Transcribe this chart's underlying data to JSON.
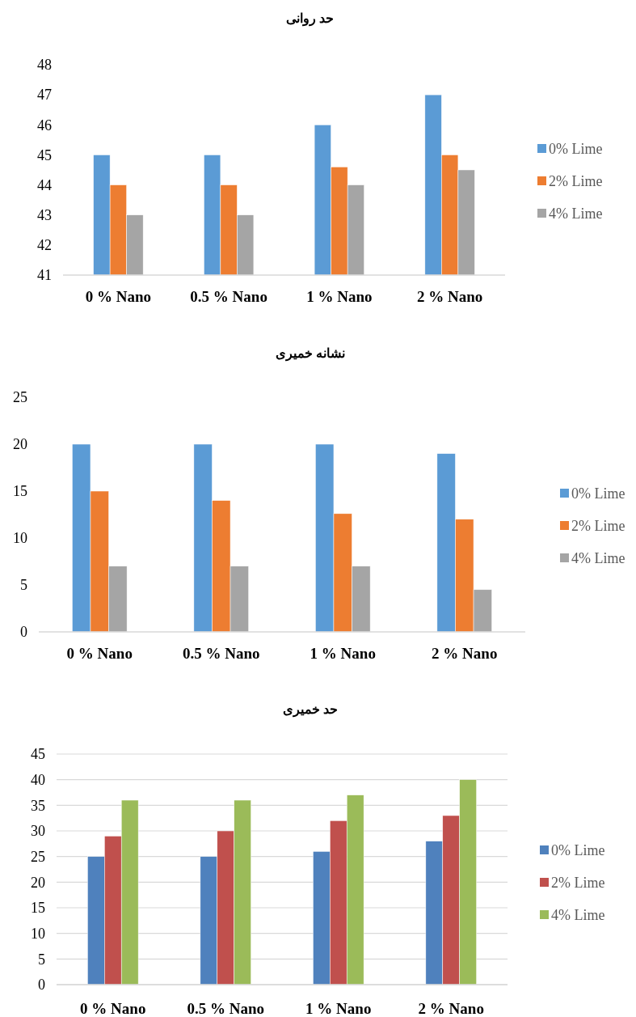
{
  "chart_data": [
    {
      "type": "bar",
      "title": "حد روانی",
      "categories": [
        "0 % Nano",
        "0.5 % Nano",
        "1 % Nano",
        "2 % Nano"
      ],
      "series": [
        {
          "name": "0% Lime",
          "color": "#5b9bd5",
          "values": [
            45,
            45,
            46,
            47
          ]
        },
        {
          "name": "2% Lime",
          "color": "#ed7d31",
          "values": [
            44,
            44,
            44.6,
            45
          ]
        },
        {
          "name": "4% Lime",
          "color": "#a5a5a5",
          "values": [
            43,
            43,
            44,
            44.5
          ]
        }
      ],
      "ylim": [
        41,
        48
      ],
      "yticks": [
        41,
        42,
        43,
        44,
        45,
        46,
        47,
        48
      ],
      "grid": false,
      "legend": "right"
    },
    {
      "type": "bar",
      "title": "نشانه خمیری",
      "categories": [
        "0 % Nano",
        "0.5 % Nano",
        "1 % Nano",
        "2 % Nano"
      ],
      "series": [
        {
          "name": "0% Lime",
          "color": "#5b9bd5",
          "values": [
            20,
            20,
            20,
            19
          ]
        },
        {
          "name": "2% Lime",
          "color": "#ed7d31",
          "values": [
            15,
            14,
            12.6,
            12
          ]
        },
        {
          "name": "4% Lime",
          "color": "#a5a5a5",
          "values": [
            7,
            7,
            7,
            4.5
          ]
        }
      ],
      "ylim": [
        0,
        25
      ],
      "yticks": [
        0,
        5,
        10,
        15,
        20,
        25
      ],
      "grid": false,
      "legend": "right"
    },
    {
      "type": "bar",
      "title": "حد خمیری",
      "categories": [
        "0 % Nano",
        "0.5 % Nano",
        "1 % Nano",
        "2 % Nano"
      ],
      "series": [
        {
          "name": "0% Lime",
          "color": "#4f81bd",
          "values": [
            25,
            25,
            26,
            28
          ]
        },
        {
          "name": "2% Lime",
          "color": "#c0504d",
          "values": [
            29,
            30,
            32,
            33
          ]
        },
        {
          "name": "4% Lime",
          "color": "#9bbb59",
          "values": [
            36,
            36,
            37,
            40
          ]
        }
      ],
      "ylim": [
        0,
        45
      ],
      "yticks": [
        0,
        5,
        10,
        15,
        20,
        25,
        30,
        35,
        40,
        45
      ],
      "grid": "y",
      "legend": "right"
    }
  ]
}
